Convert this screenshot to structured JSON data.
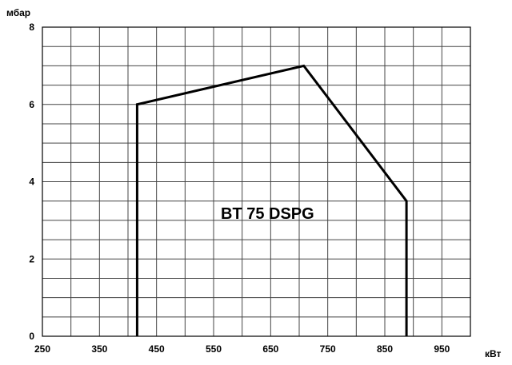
{
  "chart_data": {
    "type": "line",
    "title": "",
    "xlabel": "кВт",
    "ylabel": "мбар",
    "annotation": "BT 75 DSPG",
    "xlim": [
      250,
      1000
    ],
    "ylim": [
      0,
      8
    ],
    "x_ticks": [
      250,
      350,
      450,
      550,
      650,
      750,
      850,
      950
    ],
    "y_ticks": [
      0,
      2,
      4,
      6,
      8
    ],
    "grid": true,
    "series": [
      {
        "color": "#000000",
        "x": [
          416,
          416,
          708,
          888,
          888
        ],
        "y": [
          0,
          6,
          7,
          3.5,
          0
        ]
      }
    ]
  }
}
